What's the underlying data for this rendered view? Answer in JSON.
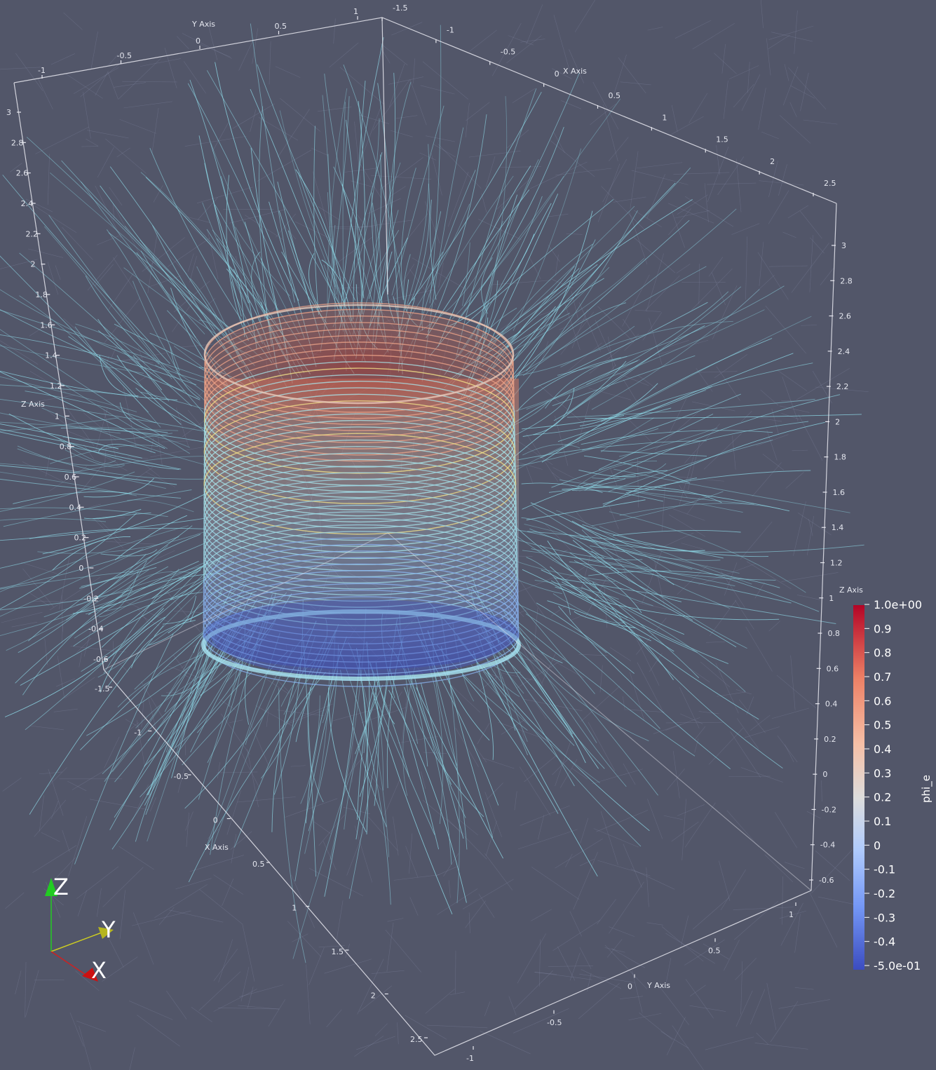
{
  "scalar_bar": {
    "title": "phi_e",
    "labels": [
      "1.0e+00",
      "0.9",
      "0.8",
      "0.7",
      "0.6",
      "0.5",
      "0.4",
      "0.3",
      "0.2",
      "0.1",
      "0",
      "-0.1",
      "-0.2",
      "-0.3",
      "-0.4",
      "-5.0e-01"
    ],
    "range": [
      -0.5,
      1.0
    ],
    "colors": [
      "#3b4cc0",
      "#7396f5",
      "#b0cbfc",
      "#dddddd",
      "#f6bfa6",
      "#ec8065",
      "#b40426"
    ]
  },
  "orientation_axes": {
    "z_label": "Z",
    "y_label": "Y",
    "x_label": "X",
    "z_color": "#22cc22",
    "y_color": "#cccc22",
    "x_color": "#cc2222"
  },
  "axes": {
    "x_axis_title": "X Axis",
    "y_axis_title": "Y Axis",
    "z_axis_title": "Z Axis",
    "top_y_ticks": [
      "-1",
      "-0.5",
      "0",
      "0.5",
      "1"
    ],
    "top_x_ticks": [
      "-1.5",
      "-1",
      "-0.5",
      "0",
      "0.5",
      "1",
      "1.5",
      "2",
      "2.5"
    ],
    "left_z_ticks": [
      "3",
      "2.8",
      "2.6",
      "2.4",
      "2.2",
      "2",
      "1.8",
      "1.6",
      "1.4",
      "1.2",
      "1",
      "0.8",
      "0.6",
      "0.4",
      "0.2",
      "0",
      "-0.2",
      "-0.4",
      "-0.6"
    ],
    "right_z_ticks": [
      "3",
      "2.8",
      "2.6",
      "2.4",
      "2.2",
      "2",
      "1.8",
      "1.6",
      "1.4",
      "1.2",
      "1",
      "0.8",
      "0.6",
      "0.4",
      "0.2",
      "0",
      "-0.2",
      "-0.4",
      "-0.6"
    ],
    "bottom_x_ticks": [
      "-1.5",
      "-1",
      "-0.5",
      "0",
      "0.5",
      "1",
      "1.5",
      "2",
      "2.5"
    ],
    "bottom_y_ticks": [
      "1",
      "0.5",
      "0",
      "-0.5",
      "-1"
    ]
  },
  "colors": {
    "background": "#525669",
    "streamline": "#8fdcea",
    "mesh": "#9aa0c0",
    "axes_line": "#e8e8f0"
  }
}
